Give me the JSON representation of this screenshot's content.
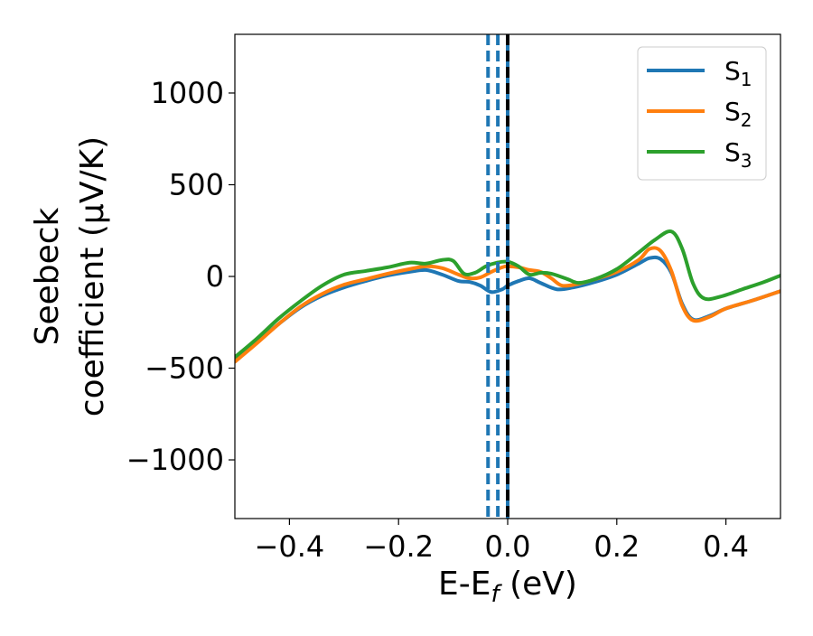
{
  "chart_data": {
    "type": "line",
    "xlabel_main": "E-E",
    "xlabel_sub": "f",
    "xlabel_unit": " (eV)",
    "ylabel_line1": "Seebeck",
    "ylabel_line2": "coefficient  (μV/K)",
    "xlim": [
      -0.5,
      0.5
    ],
    "ylim": [
      -1320,
      1320
    ],
    "xticks": [
      -0.4,
      -0.2,
      0.0,
      0.2,
      0.4
    ],
    "xtick_labels": [
      "−0.4",
      "−0.2",
      "0.0",
      "0.2",
      "0.4"
    ],
    "yticks": [
      -1000,
      -500,
      0,
      500,
      1000
    ],
    "ytick_labels": [
      "−1000",
      "−500",
      "0",
      "500",
      "1000"
    ],
    "grid": false,
    "legend_position": "top-right",
    "vlines": [
      {
        "x": -0.036,
        "style": "dashed",
        "color": "#1f77b4"
      },
      {
        "x": -0.018,
        "style": "dashed",
        "color": "#1f77b4"
      },
      {
        "x": 0.0,
        "style": "solid",
        "color": "#1f77b4"
      },
      {
        "x": 0.0,
        "style": "dashed",
        "color": "#000000"
      }
    ],
    "series": [
      {
        "name": "S",
        "sub": "1",
        "color": "#1f77b4",
        "points": [
          [
            -0.5,
            -460
          ],
          [
            -0.46,
            -360
          ],
          [
            -0.42,
            -260
          ],
          [
            -0.38,
            -170
          ],
          [
            -0.34,
            -105
          ],
          [
            -0.3,
            -60
          ],
          [
            -0.26,
            -25
          ],
          [
            -0.22,
            5
          ],
          [
            -0.18,
            25
          ],
          [
            -0.15,
            35
          ],
          [
            -0.12,
            10
          ],
          [
            -0.09,
            -25
          ],
          [
            -0.07,
            -30
          ],
          [
            -0.05,
            -50
          ],
          [
            -0.03,
            -85
          ],
          [
            -0.01,
            -70
          ],
          [
            0.0,
            -50
          ],
          [
            0.02,
            -25
          ],
          [
            0.04,
            -10
          ],
          [
            0.06,
            -35
          ],
          [
            0.09,
            -70
          ],
          [
            0.12,
            -60
          ],
          [
            0.16,
            -30
          ],
          [
            0.2,
            10
          ],
          [
            0.24,
            70
          ],
          [
            0.26,
            100
          ],
          [
            0.28,
            95
          ],
          [
            0.3,
            20
          ],
          [
            0.32,
            -150
          ],
          [
            0.34,
            -235
          ],
          [
            0.37,
            -215
          ],
          [
            0.4,
            -175
          ],
          [
            0.45,
            -130
          ],
          [
            0.5,
            -80
          ]
        ]
      },
      {
        "name": "S",
        "sub": "2",
        "color": "#ff7f0e",
        "points": [
          [
            -0.5,
            -465
          ],
          [
            -0.46,
            -365
          ],
          [
            -0.42,
            -260
          ],
          [
            -0.38,
            -165
          ],
          [
            -0.34,
            -95
          ],
          [
            -0.3,
            -45
          ],
          [
            -0.26,
            -15
          ],
          [
            -0.22,
            15
          ],
          [
            -0.18,
            40
          ],
          [
            -0.15,
            55
          ],
          [
            -0.12,
            45
          ],
          [
            -0.09,
            10
          ],
          [
            -0.07,
            -10
          ],
          [
            -0.05,
            -5
          ],
          [
            -0.03,
            25
          ],
          [
            -0.01,
            50
          ],
          [
            0.0,
            55
          ],
          [
            0.02,
            50
          ],
          [
            0.04,
            35
          ],
          [
            0.06,
            25
          ],
          [
            0.08,
            -10
          ],
          [
            0.1,
            -50
          ],
          [
            0.13,
            -40
          ],
          [
            0.16,
            -15
          ],
          [
            0.2,
            25
          ],
          [
            0.24,
            90
          ],
          [
            0.26,
            150
          ],
          [
            0.28,
            140
          ],
          [
            0.3,
            30
          ],
          [
            0.32,
            -160
          ],
          [
            0.34,
            -240
          ],
          [
            0.37,
            -220
          ],
          [
            0.4,
            -175
          ],
          [
            0.45,
            -130
          ],
          [
            0.5,
            -80
          ]
        ]
      },
      {
        "name": "S",
        "sub": "3",
        "color": "#2ca02c",
        "points": [
          [
            -0.5,
            -440
          ],
          [
            -0.46,
            -340
          ],
          [
            -0.42,
            -230
          ],
          [
            -0.38,
            -135
          ],
          [
            -0.34,
            -50
          ],
          [
            -0.3,
            10
          ],
          [
            -0.26,
            30
          ],
          [
            -0.22,
            50
          ],
          [
            -0.18,
            75
          ],
          [
            -0.15,
            70
          ],
          [
            -0.12,
            90
          ],
          [
            -0.1,
            85
          ],
          [
            -0.08,
            15
          ],
          [
            -0.06,
            20
          ],
          [
            -0.04,
            55
          ],
          [
            -0.02,
            75
          ],
          [
            0.0,
            80
          ],
          [
            0.02,
            55
          ],
          [
            0.04,
            10
          ],
          [
            0.06,
            20
          ],
          [
            0.08,
            15
          ],
          [
            0.11,
            -15
          ],
          [
            0.13,
            -35
          ],
          [
            0.16,
            -15
          ],
          [
            0.2,
            40
          ],
          [
            0.24,
            130
          ],
          [
            0.27,
            200
          ],
          [
            0.3,
            245
          ],
          [
            0.32,
            150
          ],
          [
            0.34,
            -40
          ],
          [
            0.36,
            -120
          ],
          [
            0.39,
            -110
          ],
          [
            0.43,
            -70
          ],
          [
            0.47,
            -30
          ],
          [
            0.5,
            5
          ]
        ]
      }
    ]
  }
}
